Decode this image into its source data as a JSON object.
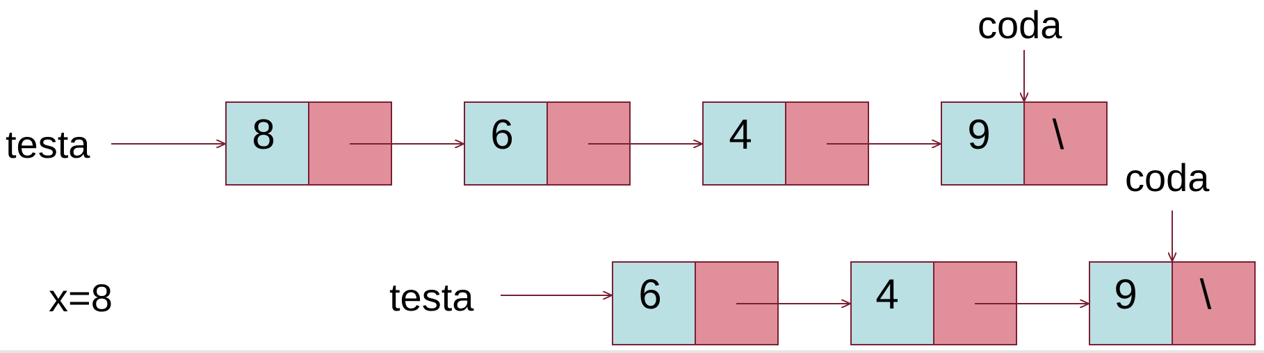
{
  "colors": {
    "value_cell": "#bbe0e3",
    "pointer_cell": "#e1909b",
    "border": "#7a1f32",
    "arrow": "#7a1f32",
    "text": "#000000"
  },
  "top_list": {
    "head_label": "testa",
    "tail_label": "coda",
    "nodes": [
      {
        "value": "8",
        "next": ""
      },
      {
        "value": "6",
        "next": ""
      },
      {
        "value": "4",
        "next": ""
      },
      {
        "value": "9",
        "next": "\\"
      }
    ]
  },
  "bottom_list": {
    "removed_label": "x=8",
    "head_label": "testa",
    "tail_label": "coda",
    "nodes": [
      {
        "value": "6",
        "next": ""
      },
      {
        "value": "4",
        "next": ""
      },
      {
        "value": "9",
        "next": "\\"
      }
    ]
  }
}
